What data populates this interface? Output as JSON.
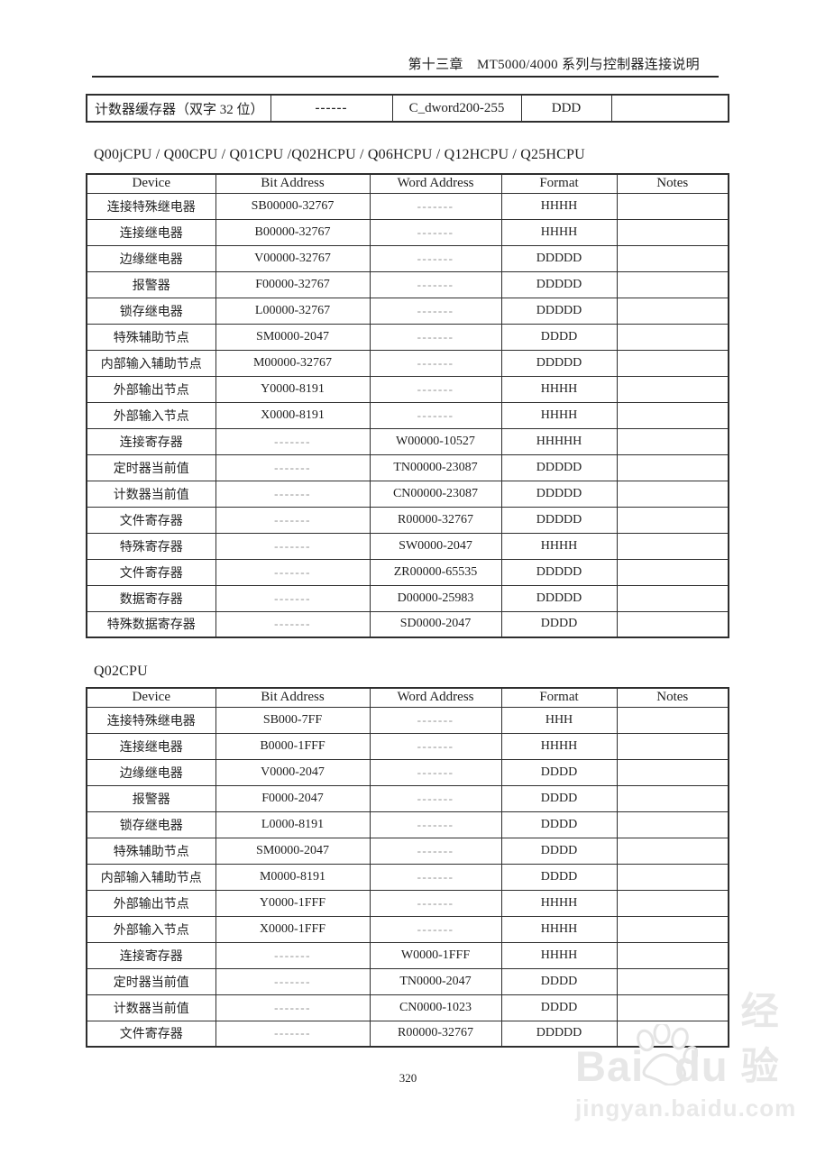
{
  "header": {
    "chapter_line": "第十三章　MT5000/4000 系列与控制器连接说明"
  },
  "top_table": {
    "rows": [
      [
        "计数器缓存器（双字 32 位）",
        "------",
        "C_dword200-255",
        "DDD",
        ""
      ]
    ]
  },
  "section1": {
    "title": "Q00jCPU / Q00CPU / Q01CPU /Q02HCPU / Q06HCPU / Q12HCPU / Q25HCPU",
    "table": {
      "headers": [
        "Device",
        "Bit Address",
        "Word Address",
        "Format",
        "Notes"
      ],
      "rows": [
        [
          "连接特殊继电器",
          "SB00000-32767",
          "-------",
          "HHHH",
          ""
        ],
        [
          "连接继电器",
          "B00000-32767",
          "-------",
          "HHHH",
          ""
        ],
        [
          "边缘继电器",
          "V00000-32767",
          "-------",
          "DDDDD",
          ""
        ],
        [
          "报警器",
          "F00000-32767",
          "-------",
          "DDDDD",
          ""
        ],
        [
          "锁存继电器",
          "L00000-32767",
          "-------",
          "DDDDD",
          ""
        ],
        [
          "特殊辅助节点",
          "SM0000-2047",
          "-------",
          "DDDD",
          ""
        ],
        [
          "内部输入辅助节点",
          "M00000-32767",
          "-------",
          "DDDDD",
          ""
        ],
        [
          "外部输出节点",
          "Y0000-8191",
          "-------",
          "HHHH",
          ""
        ],
        [
          "外部输入节点",
          "X0000-8191",
          "-------",
          "HHHH",
          ""
        ],
        [
          "连接寄存器",
          "-------",
          "W00000-10527",
          "HHHHH",
          ""
        ],
        [
          "定时器当前值",
          "-------",
          "TN00000-23087",
          "DDDDD",
          ""
        ],
        [
          "计数器当前值",
          "-------",
          "CN00000-23087",
          "DDDDD",
          ""
        ],
        [
          "文件寄存器",
          "-------",
          "R00000-32767",
          "DDDDD",
          ""
        ],
        [
          "特殊寄存器",
          "-------",
          "SW0000-2047",
          "HHHH",
          ""
        ],
        [
          "文件寄存器",
          "-------",
          "ZR00000-65535",
          "DDDDD",
          ""
        ],
        [
          "数据寄存器",
          "-------",
          "D00000-25983",
          "DDDDD",
          ""
        ],
        [
          "特殊数据寄存器",
          "-------",
          "SD0000-2047",
          "DDDD",
          ""
        ]
      ]
    }
  },
  "section2": {
    "title": "Q02CPU",
    "table": {
      "headers": [
        "Device",
        "Bit Address",
        "Word Address",
        "Format",
        "Notes"
      ],
      "rows": [
        [
          "连接特殊继电器",
          "SB000-7FF",
          "-------",
          "HHH",
          ""
        ],
        [
          "连接继电器",
          "B0000-1FFF",
          "-------",
          "HHHH",
          ""
        ],
        [
          "边缘继电器",
          "V0000-2047",
          "-------",
          "DDDD",
          ""
        ],
        [
          "报警器",
          "F0000-2047",
          "-------",
          "DDDD",
          ""
        ],
        [
          "锁存继电器",
          "L0000-8191",
          "-------",
          "DDDD",
          ""
        ],
        [
          "特殊辅助节点",
          "SM0000-2047",
          "-------",
          "DDDD",
          ""
        ],
        [
          "内部输入辅助节点",
          "M0000-8191",
          "-------",
          "DDDD",
          ""
        ],
        [
          "外部输出节点",
          "Y0000-1FFF",
          "-------",
          "HHHH",
          ""
        ],
        [
          "外部输入节点",
          "X0000-1FFF",
          "-------",
          "HHHH",
          ""
        ],
        [
          "连接寄存器",
          "-------",
          "W0000-1FFF",
          "HHHH",
          ""
        ],
        [
          "定时器当前值",
          "-------",
          "TN0000-2047",
          "DDDD",
          ""
        ],
        [
          "计数器当前值",
          "-------",
          "CN0000-1023",
          "DDDD",
          ""
        ],
        [
          "文件寄存器",
          "-------",
          "R00000-32767",
          "DDDDD",
          ""
        ]
      ]
    }
  },
  "footer": {
    "page_number": "320"
  },
  "watermark": {
    "brand_left": "Bai",
    "brand_right": "du",
    "brand_cjk": "经验",
    "url": "jingyan.baidu.com",
    "color": "#e7e7e7"
  }
}
